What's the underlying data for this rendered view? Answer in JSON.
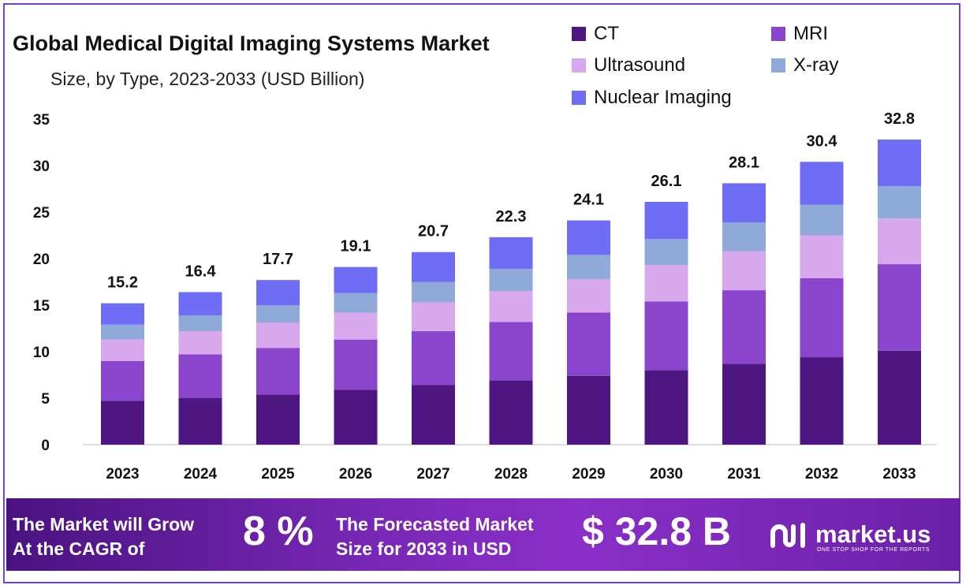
{
  "title": "Global Medical Digital Imaging Systems Market",
  "subtitle": "Size, by Type, 2023-2033 (USD Billion)",
  "legend": [
    {
      "label": "CT",
      "color": "#4e1680"
    },
    {
      "label": "MRI",
      "color": "#8a45cc"
    },
    {
      "label": "Ultrasound",
      "color": "#d7a8ec"
    },
    {
      "label": "X-ray",
      "color": "#8fa9d9"
    },
    {
      "label": "Nuclear Imaging",
      "color": "#6f6cf6"
    }
  ],
  "chart_data": {
    "type": "bar",
    "stacked": true,
    "categories": [
      "2023",
      "2024",
      "2025",
      "2026",
      "2027",
      "2028",
      "2029",
      "2030",
      "2031",
      "2032",
      "2033"
    ],
    "series": [
      {
        "name": "CT",
        "color": "#4e1680",
        "values": [
          4.7,
          5.0,
          5.4,
          5.9,
          6.4,
          6.9,
          7.4,
          8.0,
          8.7,
          9.4,
          10.1
        ]
      },
      {
        "name": "MRI",
        "color": "#8a45cc",
        "values": [
          4.3,
          4.7,
          5.0,
          5.4,
          5.8,
          6.3,
          6.8,
          7.4,
          7.9,
          8.5,
          9.3
        ]
      },
      {
        "name": "Ultrasound",
        "color": "#d7a8ec",
        "values": [
          2.3,
          2.5,
          2.7,
          2.9,
          3.1,
          3.3,
          3.6,
          3.9,
          4.2,
          4.6,
          4.9
        ]
      },
      {
        "name": "X-ray",
        "color": "#8fa9d9",
        "values": [
          1.6,
          1.7,
          1.9,
          2.1,
          2.2,
          2.4,
          2.6,
          2.8,
          3.1,
          3.3,
          3.5
        ]
      },
      {
        "name": "Nuclear Imaging",
        "color": "#6f6cf6",
        "values": [
          2.3,
          2.5,
          2.7,
          2.8,
          3.2,
          3.4,
          3.7,
          4.0,
          4.2,
          4.6,
          5.0
        ]
      }
    ],
    "totals": [
      15.2,
      16.4,
      17.7,
      19.1,
      20.7,
      22.3,
      24.1,
      26.1,
      28.1,
      30.4,
      32.8
    ],
    "total_labels": [
      "15.2",
      "16.4",
      "17.7",
      "19.1",
      "20.7",
      "22.3",
      "24.1",
      "26.1",
      "28.1",
      "30.4",
      "32.8"
    ],
    "y_ticks": [
      0,
      5,
      10,
      15,
      20,
      25,
      30,
      35
    ],
    "ylim": [
      0,
      35
    ],
    "grid": false,
    "legend_position": "top-right"
  },
  "banner": {
    "cagr_label_line1": "The Market will Grow",
    "cagr_label_line2": "At the CAGR of",
    "cagr_value": "8 %",
    "forecast_label_line1": "The Forecasted Market",
    "forecast_label_line2": "Size for 2033 in USD",
    "forecast_value": "$ 32.8 B",
    "brand_name": "market.us",
    "brand_tagline": "ONE STOP SHOP FOR THE REPORTS"
  }
}
